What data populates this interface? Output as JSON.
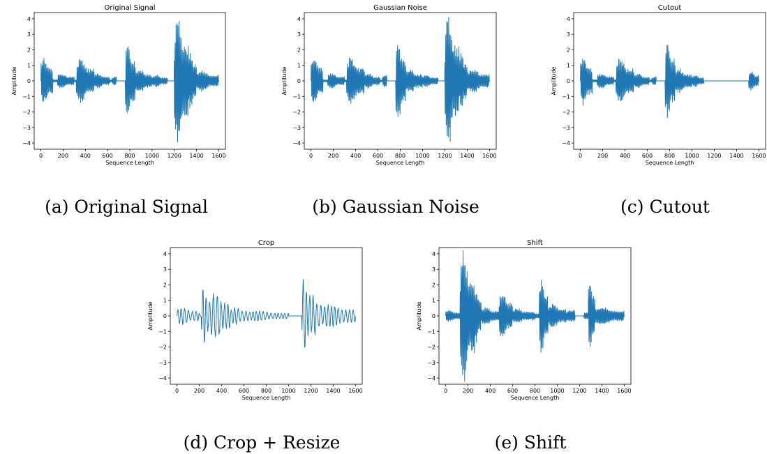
{
  "chart_data": [
    {
      "type": "line",
      "title": "Original Signal",
      "xlabel": "Sequence Length",
      "ylabel": "Amplitude",
      "xlim": [
        -60,
        1660
      ],
      "ylim": [
        -4.4,
        4.4
      ],
      "xticks": [
        0,
        200,
        400,
        600,
        800,
        1000,
        1200,
        1400,
        1600
      ],
      "yticks": [
        -4,
        -3,
        -2,
        -1,
        0,
        1,
        2,
        3,
        4
      ],
      "grid": false,
      "series": [
        {
          "color": "#1f77b4",
          "bursts": [
            [
              0,
              110,
              1.6
            ],
            [
              150,
              300,
              0.5
            ],
            [
              320,
              480,
              1.5
            ],
            [
              480,
              620,
              0.5
            ],
            [
              640,
              760,
              0.3
            ],
            [
              760,
              850,
              2.6
            ],
            [
              850,
              1000,
              0.8
            ],
            [
              1000,
              1140,
              0.4
            ],
            [
              1200,
              1330,
              4.4
            ],
            [
              1330,
              1400,
              2.0
            ],
            [
              1400,
              1600,
              0.7
            ]
          ],
          "quiet": [
            [
              680,
              760
            ],
            [
              1140,
              1200
            ]
          ]
        }
      ],
      "caption": "(a) Original Signal"
    },
    {
      "type": "line",
      "title": "Gaussian Noise",
      "xlabel": "Sequence Length",
      "ylabel": "Amplitude",
      "xlim": [
        -60,
        1660
      ],
      "ylim": [
        -4.4,
        4.4
      ],
      "xticks": [
        0,
        200,
        400,
        600,
        800,
        1000,
        1200,
        1400,
        1600
      ],
      "yticks": [
        -4,
        -3,
        -2,
        -1,
        0,
        1,
        2,
        3,
        4
      ],
      "grid": false,
      "series": [
        {
          "color": "#1f77b4",
          "bursts": [
            [
              0,
              110,
              1.7
            ],
            [
              150,
              300,
              0.5
            ],
            [
              320,
              480,
              1.6
            ],
            [
              480,
              620,
              0.5
            ],
            [
              640,
              760,
              0.4
            ],
            [
              760,
              850,
              2.7
            ],
            [
              850,
              1000,
              0.8
            ],
            [
              1000,
              1140,
              0.4
            ],
            [
              1200,
              1330,
              4.4
            ],
            [
              1330,
              1400,
              2.1
            ],
            [
              1400,
              1600,
              0.8
            ]
          ],
          "quiet": [
            [
              680,
              760
            ],
            [
              1140,
              1200
            ]
          ]
        }
      ],
      "caption": "(b) Gaussian Noise"
    },
    {
      "type": "line",
      "title": "Cutout",
      "xlabel": "Sequence Length",
      "ylabel": "Amplitude",
      "xlim": [
        -60,
        1660
      ],
      "ylim": [
        -4.4,
        4.4
      ],
      "xticks": [
        0,
        200,
        400,
        600,
        800,
        1000,
        1200,
        1400,
        1600
      ],
      "yticks": [
        -4,
        -3,
        -2,
        -1,
        0,
        1,
        2,
        3,
        4
      ],
      "grid": false,
      "series": [
        {
          "color": "#1f77b4",
          "bursts": [
            [
              0,
              110,
              1.6
            ],
            [
              150,
              300,
              0.5
            ],
            [
              320,
              480,
              1.5
            ],
            [
              480,
              620,
              0.5
            ],
            [
              640,
              760,
              0.3
            ],
            [
              760,
              850,
              2.6
            ],
            [
              850,
              1000,
              0.8
            ],
            [
              1000,
              1110,
              0.4
            ],
            [
              1510,
              1600,
              0.7
            ]
          ],
          "quiet": [
            [
              680,
              760
            ],
            [
              1110,
              1510
            ]
          ]
        }
      ],
      "caption": "(c) Cutout"
    },
    {
      "type": "line",
      "title": "Crop",
      "xlabel": "Sequence Length",
      "ylabel": "Amplitude",
      "xlim": [
        -60,
        1660
      ],
      "ylim": [
        -4.4,
        4.4
      ],
      "xticks": [
        0,
        200,
        400,
        600,
        800,
        1000,
        1200,
        1400,
        1600
      ],
      "yticks": [
        -4,
        -3,
        -2,
        -1,
        0,
        1,
        2,
        3,
        4
      ],
      "grid": false,
      "series": [
        {
          "color": "#1f77b4",
          "period": 32,
          "bursts": [
            [
              0,
              200,
              0.6
            ],
            [
              220,
              300,
              1.9
            ],
            [
              300,
              480,
              1.6
            ],
            [
              480,
              640,
              0.6
            ],
            [
              640,
              1000,
              0.35
            ],
            [
              1000,
              1120,
              0.3
            ],
            [
              1120,
              1200,
              2.6
            ],
            [
              1200,
              1300,
              1.4
            ],
            [
              1300,
              1600,
              0.8
            ]
          ],
          "quiet": [
            [
              1000,
              1120
            ]
          ]
        }
      ],
      "caption": "(d) Crop + Resize"
    },
    {
      "type": "line",
      "title": "Shift",
      "xlabel": "Sequence Length",
      "ylabel": "Amplitude",
      "xlim": [
        -60,
        1660
      ],
      "ylim": [
        -4.4,
        4.4
      ],
      "xticks": [
        0,
        200,
        400,
        600,
        800,
        1000,
        1200,
        1400,
        1600
      ],
      "yticks": [
        -4,
        -3,
        -2,
        -1,
        0,
        1,
        2,
        3,
        4
      ],
      "grid": false,
      "series": [
        {
          "color": "#1f77b4",
          "bursts": [
            [
              0,
              130,
              0.4
            ],
            [
              130,
              260,
              4.4
            ],
            [
              260,
              320,
              1.9
            ],
            [
              320,
              480,
              0.6
            ],
            [
              480,
              600,
              1.6
            ],
            [
              600,
              760,
              0.5
            ],
            [
              760,
              840,
              0.3
            ],
            [
              840,
              920,
              2.6
            ],
            [
              920,
              1080,
              0.8
            ],
            [
              1080,
              1280,
              0.4
            ],
            [
              1280,
              1340,
              2.6
            ],
            [
              1340,
              1600,
              0.6
            ]
          ],
          "quiet": [
            [
              1160,
              1240
            ]
          ]
        }
      ],
      "caption": "(e) Shift"
    }
  ]
}
